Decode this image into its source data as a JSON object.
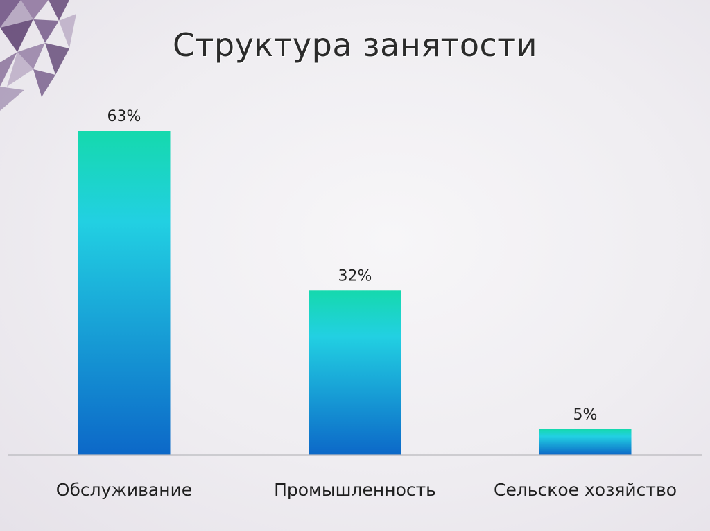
{
  "chart_data": {
    "type": "bar",
    "title": "Структура занятости",
    "categories": [
      "Обслуживание",
      "Промышленность",
      "Сельское хозяйство"
    ],
    "values": [
      63,
      32,
      5
    ],
    "value_labels": [
      "63%",
      "32%",
      "5%"
    ],
    "ylim": [
      0,
      63
    ],
    "grid": false,
    "legend": "none",
    "xlabel": "",
    "ylabel": ""
  },
  "colors": {
    "bar_top": "#15d9ad",
    "bar_mid": "#22d0e2",
    "bar_bottom": "#0c68c8",
    "decoration": "#6a4a7e",
    "axis": "#b9b9bd"
  },
  "decoration": {
    "icon": "purple-triangle-pattern-icon"
  }
}
